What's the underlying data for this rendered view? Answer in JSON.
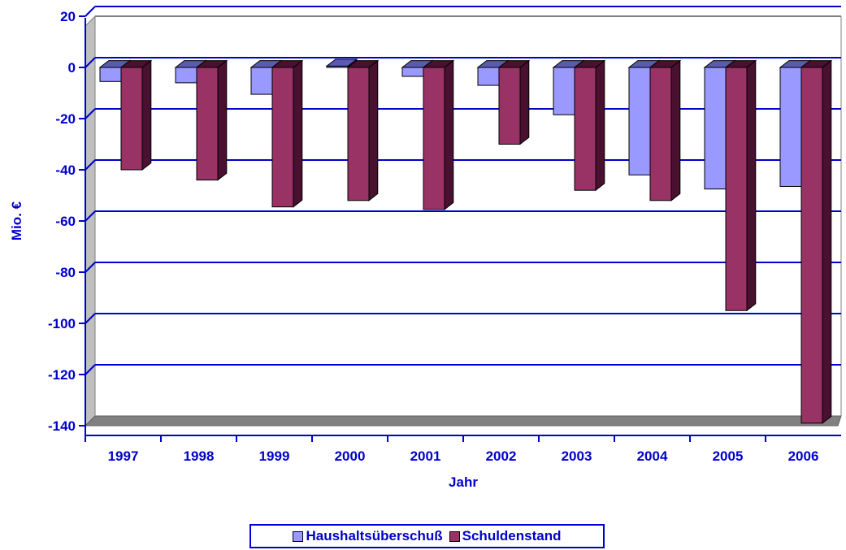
{
  "chart_data": {
    "type": "bar",
    "title": "",
    "xlabel": "Jahr",
    "ylabel": "Mio. €",
    "ylim": [
      -140,
      20
    ],
    "yticks": [
      "20",
      "0",
      "-20",
      "-40",
      "-60",
      "-80",
      "-100",
      "-120",
      "-140"
    ],
    "categories": [
      "1997",
      "1998",
      "1999",
      "2000",
      "2001",
      "2002",
      "2003",
      "2004",
      "2005",
      "2006"
    ],
    "series": [
      {
        "name": "Haushaltsüberschuß",
        "color": "#9999ff",
        "values": [
          -5.5,
          -6,
          -10.5,
          0.5,
          -3.5,
          -7,
          -18.5,
          -42,
          -47.5,
          -46.5
        ]
      },
      {
        "name": "Schuldenstand",
        "color": "#993366",
        "values": [
          -40,
          -44,
          -54.5,
          -52,
          -55.5,
          -30,
          -48,
          -52,
          -95,
          -139
        ]
      }
    ],
    "grid": true,
    "legend": "bottom-center"
  }
}
